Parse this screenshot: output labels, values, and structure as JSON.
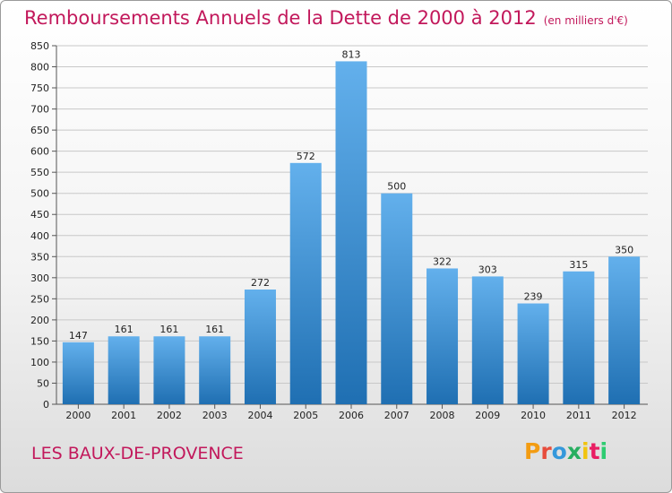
{
  "header": {
    "title": "Remboursements Annuels de la Dette de 2000 à 2012",
    "subtitle": "(en milliers d'€)"
  },
  "footer": {
    "place": "LES BAUX-DE-PROVENCE",
    "logo_text": "Proxiti"
  },
  "colors": {
    "title": "#c2185b",
    "bar_light": "#63b0ec",
    "bar_dark": "#1f6fb2",
    "logo": [
      "#f39c12",
      "#e74c3c",
      "#3498db",
      "#27ae60",
      "#f1c40f",
      "#e91e63",
      "#2ecc71"
    ]
  },
  "chart_data": {
    "type": "bar",
    "title": "Remboursements Annuels de la Dette de 2000 à 2012",
    "subtitle": "(en milliers d'€)",
    "categories": [
      "2000",
      "2001",
      "2002",
      "2003",
      "2004",
      "2005",
      "2006",
      "2007",
      "2008",
      "2009",
      "2010",
      "2011",
      "2012"
    ],
    "values": [
      147,
      161,
      161,
      161,
      272,
      572,
      813,
      500,
      322,
      303,
      239,
      315,
      350
    ],
    "data_labels": [
      "147",
      "161",
      "161",
      "161",
      "272",
      "572",
      "813",
      "500",
      "322",
      "303",
      "239",
      "315",
      "350"
    ],
    "ylim": [
      0,
      850
    ],
    "yticks": [
      0,
      50,
      100,
      150,
      200,
      250,
      300,
      350,
      400,
      450,
      500,
      550,
      600,
      650,
      700,
      750,
      800,
      850
    ],
    "grid": true
  }
}
